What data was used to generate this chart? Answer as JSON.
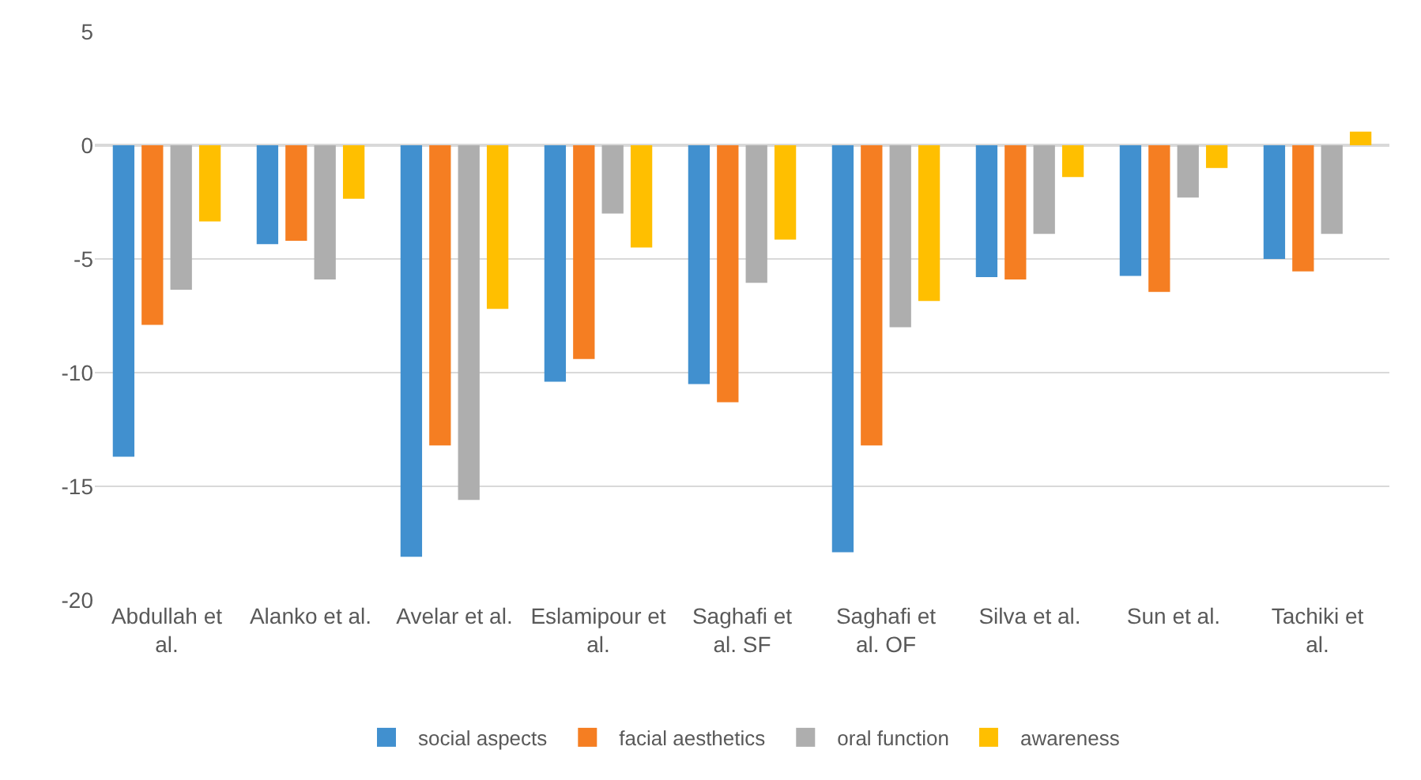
{
  "chart_data": {
    "type": "bar",
    "categories": [
      "Abdullah et al.",
      "Alanko et al.",
      "Avelar et al.",
      "Eslamipour et al.",
      "Saghafi et al. SF",
      "Saghafi et al. OF",
      "Silva et al.",
      "Sun et al.",
      "Tachiki et al."
    ],
    "series": [
      {
        "name": "social aspects",
        "color": "#4190cf",
        "values": [
          -13.7,
          -4.35,
          -18.1,
          -10.4,
          -10.5,
          -17.9,
          -5.8,
          -5.75,
          -5.0
        ]
      },
      {
        "name": "facial aesthetics",
        "color": "#f57e22",
        "values": [
          -7.9,
          -4.2,
          -13.2,
          -9.4,
          -11.3,
          -13.2,
          -5.9,
          -6.45,
          -5.55
        ]
      },
      {
        "name": "oral function",
        "color": "#aeaeae",
        "values": [
          -6.35,
          -5.9,
          -15.6,
          -3.0,
          -6.05,
          -8.0,
          -3.9,
          -2.3,
          -3.9
        ]
      },
      {
        "name": "awareness",
        "color": "#ffbf00",
        "values": [
          -3.35,
          -2.35,
          -7.2,
          -4.5,
          -4.15,
          -6.85,
          -1.4,
          -1.0,
          0.6
        ]
      }
    ],
    "ylim": [
      -20,
      5
    ],
    "yticks": [
      -20,
      -15,
      -10,
      -5,
      0,
      5
    ],
    "grid": "y",
    "legend": "bottom"
  }
}
